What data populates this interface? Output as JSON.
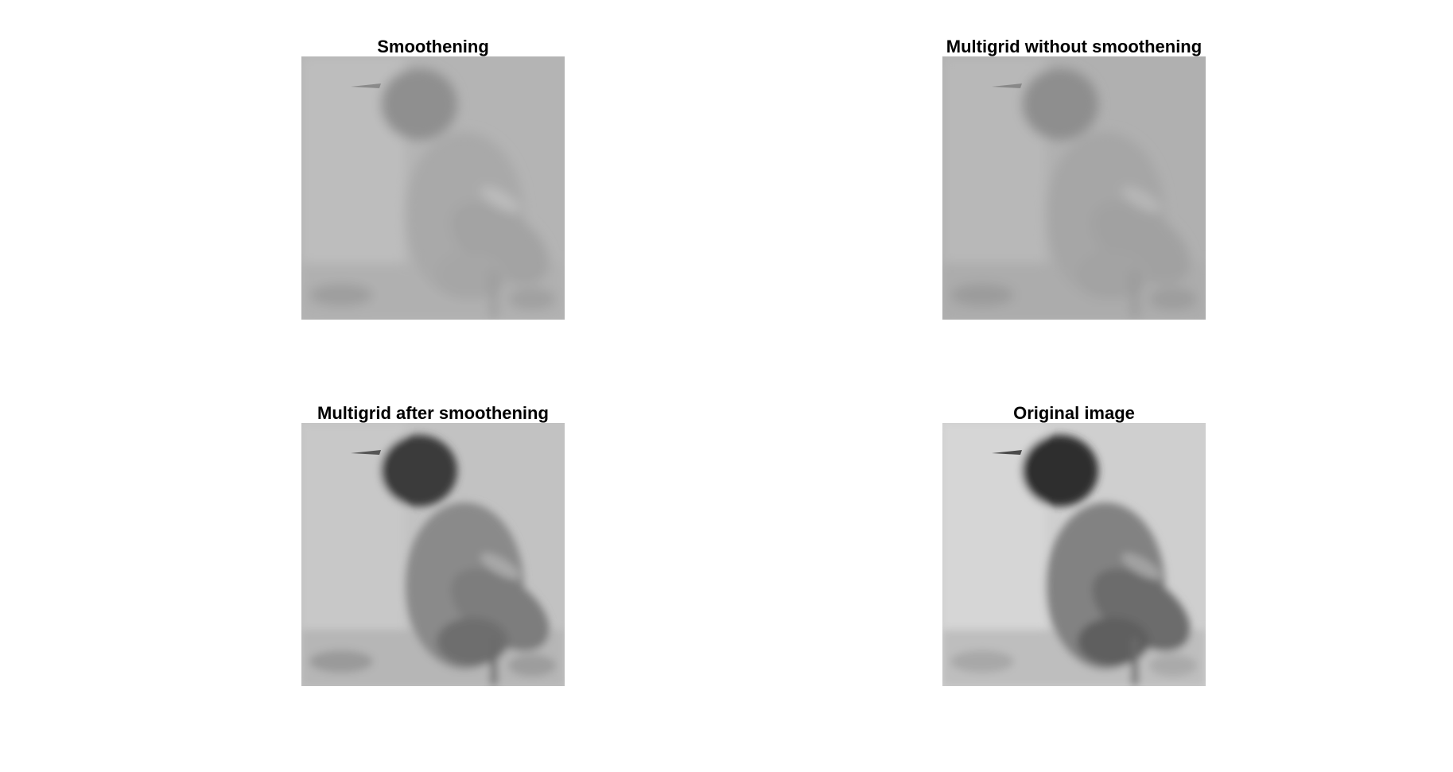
{
  "panels": [
    {
      "title": "Smoothening",
      "variant": "smooth"
    },
    {
      "title": "Multigrid without smoothening",
      "variant": "smooth"
    },
    {
      "title": "Multigrid after smoothening",
      "variant": "contrast"
    },
    {
      "title": "Original image",
      "variant": "original"
    }
  ],
  "colors": {
    "background": "#ffffff",
    "title": "#000000"
  }
}
